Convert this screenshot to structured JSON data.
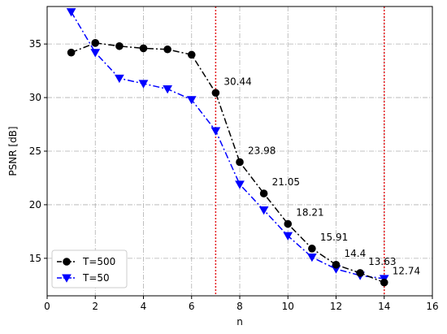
{
  "chart_data": {
    "type": "line",
    "title": "",
    "xlabel": "n",
    "ylabel": "PSNR [dB]",
    "xlim": [
      0,
      16
    ],
    "ylim": [
      11.5,
      38.5
    ],
    "xticks": [
      0,
      2,
      4,
      6,
      8,
      10,
      12,
      14,
      16
    ],
    "yticks": [
      15,
      20,
      25,
      30,
      35
    ],
    "grid": true,
    "legend_position": "lower-left",
    "vlines": [
      7,
      14
    ],
    "vline_color": "#e41a1c",
    "series": [
      {
        "name": "T=500",
        "color": "#000000",
        "marker": "circle",
        "x": [
          1,
          2,
          3,
          4,
          5,
          6,
          7,
          8,
          9,
          10,
          11,
          12,
          13,
          14
        ],
        "y": [
          34.2,
          35.1,
          34.8,
          34.6,
          34.5,
          34.0,
          30.44,
          23.98,
          21.05,
          18.21,
          15.91,
          14.4,
          13.63,
          12.74
        ]
      },
      {
        "name": "T=50",
        "color": "#0000ff",
        "marker": "triangle-down",
        "x": [
          1,
          2,
          3,
          4,
          5,
          6,
          7,
          8,
          9,
          10,
          11,
          12,
          13,
          14
        ],
        "y": [
          38.0,
          34.2,
          31.8,
          31.3,
          30.8,
          29.8,
          26.9,
          21.9,
          19.5,
          17.1,
          15.1,
          14.0,
          13.4,
          13.1
        ]
      }
    ],
    "annotations": [
      {
        "x": 7,
        "y": 30.44,
        "text": "30.44"
      },
      {
        "x": 8,
        "y": 23.98,
        "text": "23.98"
      },
      {
        "x": 9,
        "y": 21.05,
        "text": "21.05"
      },
      {
        "x": 10,
        "y": 18.21,
        "text": "18.21"
      },
      {
        "x": 11,
        "y": 15.91,
        "text": "15.91"
      },
      {
        "x": 12,
        "y": 14.4,
        "text": "14.4"
      },
      {
        "x": 13,
        "y": 13.63,
        "text": "13.63"
      },
      {
        "x": 14,
        "y": 12.74,
        "text": "12.74"
      }
    ]
  }
}
